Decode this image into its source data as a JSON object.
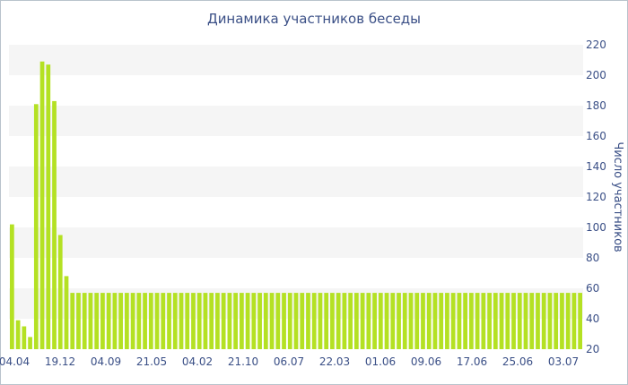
{
  "chart_data": {
    "type": "bar",
    "title": "Динамика участников беседы",
    "xlabel": "",
    "ylabel": "Число участников",
    "ylim": [
      20,
      220
    ],
    "y_ticks": [
      20,
      40,
      60,
      80,
      100,
      120,
      140,
      160,
      180,
      200,
      220
    ],
    "x_tick_labels": [
      "04.04",
      "19.12",
      "04.09",
      "21.05",
      "04.02",
      "21.10",
      "06.07",
      "22.03",
      "01.06",
      "09.06",
      "17.06",
      "25.06",
      "03.07"
    ],
    "grid": true,
    "bar_color": "#b4e123",
    "values": [
      102,
      39,
      35,
      28,
      181,
      209,
      207,
      183,
      95,
      68,
      57,
      57,
      57,
      57,
      57,
      57,
      57,
      57,
      57,
      57,
      57,
      57,
      57,
      57,
      57,
      57,
      57,
      57,
      57,
      57,
      57,
      57,
      57,
      57,
      57,
      57,
      57,
      57,
      57,
      57,
      57,
      57,
      57,
      57,
      57,
      57,
      57,
      57,
      57,
      57,
      57,
      57,
      57,
      57,
      57,
      57,
      57,
      57,
      57,
      57,
      57,
      57,
      57,
      57,
      57,
      57,
      57,
      57,
      57,
      57,
      57,
      57,
      57,
      57,
      57,
      57,
      57,
      57,
      57,
      57,
      57,
      57,
      57,
      57,
      57,
      57,
      57,
      57,
      57,
      57,
      57,
      57,
      57,
      57,
      57
    ]
  }
}
